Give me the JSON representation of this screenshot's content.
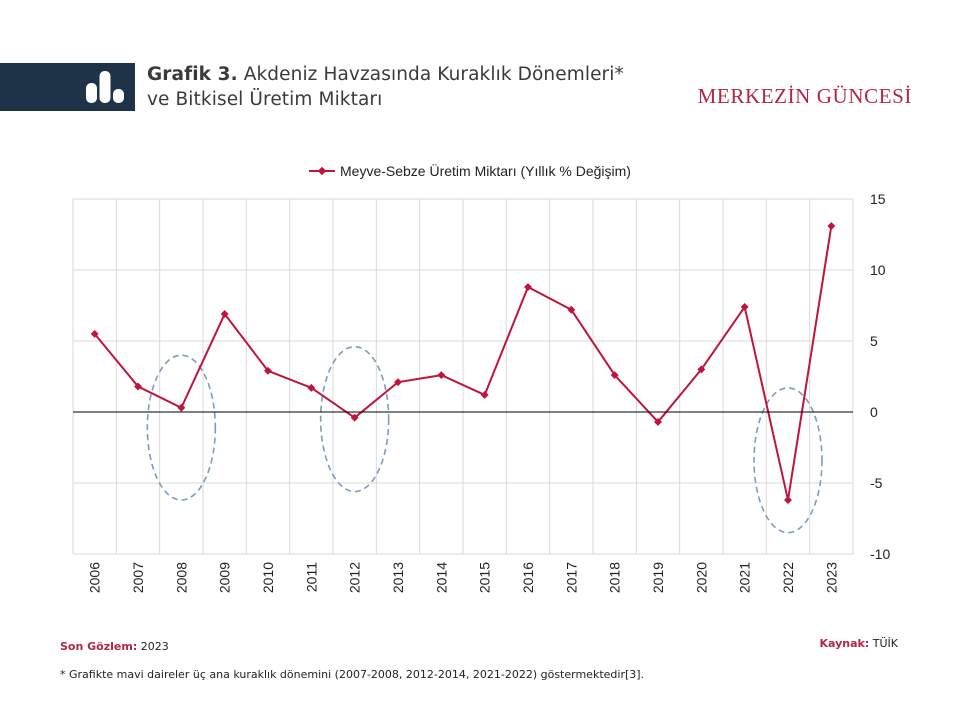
{
  "header": {
    "title_prefix": "Grafik 3.",
    "title_line1": "Akdeniz Havzasında Kuraklık Dönemleri*",
    "title_line2": "ve Bitkisel Üretim Miktarı",
    "brand": "MERKEZİN GÜNCESİ",
    "icon": "bar-chart-icon"
  },
  "chart_data": {
    "type": "line",
    "categories": [
      "2006",
      "2007",
      "2008",
      "2009",
      "2010",
      "2011",
      "2012",
      "2013",
      "2014",
      "2015",
      "2016",
      "2017",
      "2018",
      "2019",
      "2020",
      "2021",
      "2022",
      "2023"
    ],
    "series": [
      {
        "name": "Meyve-Sebze Üretim Miktarı (Yıllık % Değişim)",
        "color": "#c0143c",
        "values": [
          5.5,
          1.8,
          0.3,
          6.9,
          2.9,
          1.7,
          -0.4,
          2.1,
          2.6,
          1.2,
          8.8,
          7.2,
          2.6,
          -0.7,
          3.0,
          7.4,
          -6.2,
          13.1
        ]
      }
    ],
    "ylim": [
      -10,
      15
    ],
    "yticks": [
      "15",
      "10",
      "5",
      "0",
      "-5",
      "-10"
    ],
    "grid": true,
    "legend": "top-center",
    "drought_periods": [
      {
        "center_year": "2008",
        "y_top": 4,
        "y_bottom": -6.2
      },
      {
        "center_year": "2012",
        "y_top": 4.6,
        "y_bottom": -5.6
      },
      {
        "center_year": "2022",
        "y_top": 1.7,
        "y_bottom": -8.5
      }
    ],
    "ellipse_color": "#7a9cc0"
  },
  "footer": {
    "son_label": "Son Gözlem:",
    "son_value": "2023",
    "kaynak_label": "Kaynak:",
    "kaynak_value": "TÜİK",
    "note": "* Grafikte mavi daireler üç ana kuraklık dönemini (2007-2008, 2012-2014, 2021-2022) göstermektedir[3]."
  }
}
